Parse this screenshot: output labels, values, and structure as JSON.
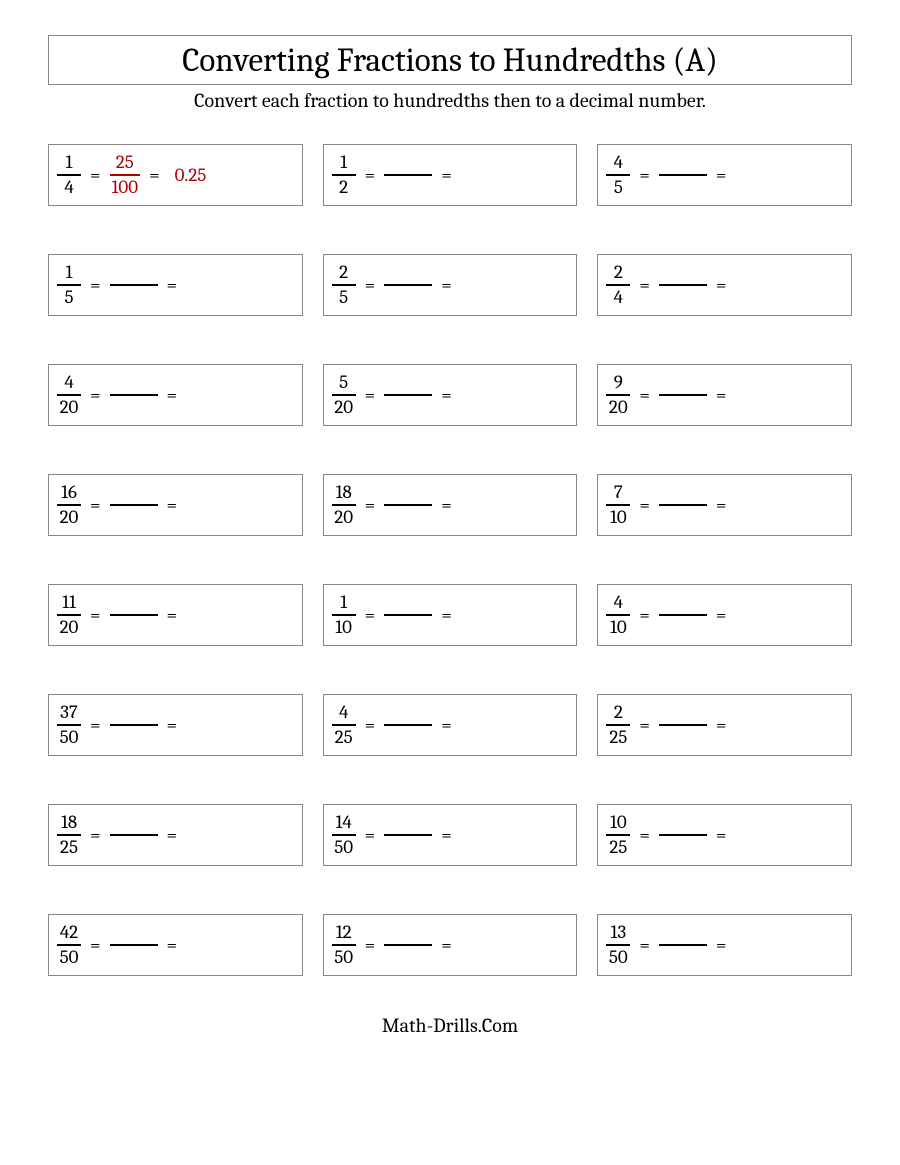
{
  "title": "Converting Fractions to Hundredths (A)",
  "subtitle": "Convert each fraction to hundredths then to a decimal number.",
  "footer": "Math-Drills.Com",
  "equals": "=",
  "example": {
    "num": "1",
    "den": "4",
    "ans_num": "25",
    "ans_den": "100",
    "decimal": "0.25"
  },
  "problems": [
    {
      "num": "1",
      "den": "2"
    },
    {
      "num": "4",
      "den": "5"
    },
    {
      "num": "1",
      "den": "5"
    },
    {
      "num": "2",
      "den": "5"
    },
    {
      "num": "2",
      "den": "4"
    },
    {
      "num": "4",
      "den": "20"
    },
    {
      "num": "5",
      "den": "20"
    },
    {
      "num": "9",
      "den": "20"
    },
    {
      "num": "16",
      "den": "20"
    },
    {
      "num": "18",
      "den": "20"
    },
    {
      "num": "7",
      "den": "10"
    },
    {
      "num": "11",
      "den": "20"
    },
    {
      "num": "1",
      "den": "10"
    },
    {
      "num": "4",
      "den": "10"
    },
    {
      "num": "37",
      "den": "50"
    },
    {
      "num": "4",
      "den": "25"
    },
    {
      "num": "2",
      "den": "25"
    },
    {
      "num": "18",
      "den": "25"
    },
    {
      "num": "14",
      "den": "50"
    },
    {
      "num": "10",
      "den": "25"
    },
    {
      "num": "42",
      "den": "50"
    },
    {
      "num": "12",
      "den": "50"
    },
    {
      "num": "13",
      "den": "50"
    }
  ]
}
